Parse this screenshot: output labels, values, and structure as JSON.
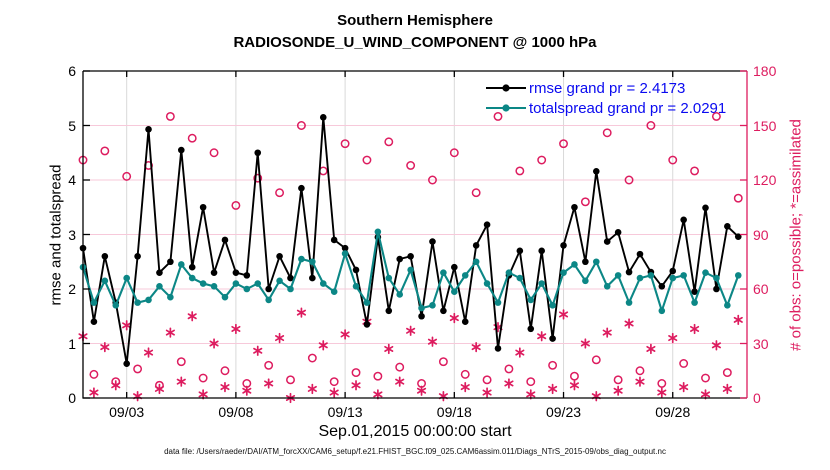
{
  "title": {
    "line1": "Southern Hemisphere",
    "line2": "RADIOSONDE_U_WIND_COMPONENT @ 1000 hPa"
  },
  "axes": {
    "left": {
      "label": "rmse and totalspread",
      "ticks": [
        0,
        1,
        2,
        3,
        4,
        5,
        6
      ],
      "range": [
        0,
        6
      ]
    },
    "right": {
      "label": "# of obs: o=possible; *=assimilated",
      "ticks": [
        0,
        30,
        60,
        90,
        120,
        150,
        180
      ],
      "range": [
        0,
        180
      ]
    },
    "x": {
      "label": "Sep.01,2015 00:00:00 start",
      "tick_labels": [
        "09/03",
        "09/08",
        "09/13",
        "09/18",
        "09/23",
        "09/28"
      ],
      "tick_days": [
        2,
        7,
        12,
        17,
        22,
        27
      ],
      "range_days": [
        0,
        30.4
      ]
    }
  },
  "legend": {
    "items": [
      {
        "label": "rmse grand pr = 2.4173",
        "series": "rmse"
      },
      {
        "label": "totalspread grand pr = 2.0291",
        "series": "totalspread"
      }
    ]
  },
  "footer": "data file: /Users/raeder/DAI/ATM_forcXX/CAM6_setup/f.e21.FHIST_BGC.f09_025.CAM6assim.011/Diags_NTrS_2015-09/obs_diag_output.nc",
  "colors": {
    "rmse": "#000000",
    "totalspread": "#0c8786",
    "obs_pink": "#dd1c5f",
    "legend_text": "#0a0af0",
    "grid_horizontal": "#f7c9da",
    "grid_vertical": "#d9d9d9"
  },
  "chart_data": {
    "type": "line",
    "title": "Southern Hemisphere — RADIOSONDE_U_WIND_COMPONENT @ 1000 hPa",
    "xlabel": "Sep.01,2015 00:00:00 start",
    "ylabel_left": "rmse and totalspread",
    "ylabel_right": "# of obs: o=possible; *=assimilated",
    "ylim_left": [
      0,
      6
    ],
    "ylim_right": [
      0,
      180
    ],
    "grid": true,
    "legend_position": "upper right",
    "grand_pr": {
      "rmse": 2.4173,
      "totalspread": 2.0291
    },
    "x_days": [
      0,
      0.5,
      1,
      1.5,
      2,
      2.5,
      3,
      3.5,
      4,
      4.5,
      5,
      5.5,
      6,
      6.5,
      7,
      7.5,
      8,
      8.5,
      9,
      9.5,
      10,
      10.5,
      11,
      11.5,
      12,
      12.5,
      13,
      13.5,
      14,
      14.5,
      15,
      15.5,
      16,
      16.5,
      17,
      17.5,
      18,
      18.5,
      19,
      19.5,
      20,
      20.5,
      21,
      21.5,
      22,
      22.5,
      23,
      23.5,
      24,
      24.5,
      25,
      25.5,
      26,
      26.5,
      27,
      27.5,
      28,
      28.5,
      29,
      29.5,
      30
    ],
    "series": [
      {
        "name": "rmse",
        "axis": "left",
        "marker": "dot",
        "values": [
          2.75,
          1.4,
          2.6,
          1.75,
          0.63,
          2.6,
          4.93,
          2.3,
          2.5,
          4.55,
          2.4,
          3.5,
          2.3,
          2.9,
          2.3,
          2.25,
          4.5,
          2.0,
          2.6,
          2.2,
          3.85,
          2.2,
          5.15,
          2.9,
          2.75,
          2.35,
          1.35,
          2.95,
          1.6,
          2.55,
          2.6,
          1.5,
          2.87,
          1.6,
          2.4,
          1.4,
          2.8,
          3.18,
          0.91,
          2.25,
          2.7,
          1.27,
          2.7,
          1.09,
          2.8,
          3.5,
          2.5,
          4.16,
          2.87,
          3.04,
          2.31,
          2.64,
          2.31,
          2.05,
          2.33,
          3.27,
          1.95,
          3.49,
          2.0,
          3.15,
          2.96
        ]
      },
      {
        "name": "totalspread",
        "axis": "left",
        "marker": "dot",
        "values": [
          2.4,
          1.75,
          2.15,
          1.7,
          2.2,
          1.75,
          1.8,
          2.05,
          1.85,
          2.45,
          2.2,
          2.1,
          2.05,
          1.85,
          2.1,
          2.0,
          2.1,
          1.8,
          2.15,
          2.0,
          2.55,
          2.5,
          2.1,
          1.95,
          2.65,
          2.05,
          1.75,
          3.05,
          2.2,
          1.9,
          2.35,
          1.65,
          1.7,
          2.3,
          1.95,
          2.25,
          2.5,
          2.1,
          1.75,
          2.3,
          2.2,
          1.8,
          2.1,
          1.7,
          2.3,
          2.45,
          2.15,
          2.5,
          2.05,
          2.25,
          1.75,
          2.2,
          2.25,
          1.6,
          2.2,
          2.25,
          1.75,
          2.3,
          2.2,
          1.7,
          2.25
        ]
      },
      {
        "name": "possible_obs",
        "axis": "right",
        "marker": "circle",
        "values": [
          131,
          13,
          136,
          9,
          122,
          16,
          128,
          7,
          155,
          20,
          143,
          11,
          135,
          15,
          106,
          8,
          121,
          18,
          113,
          10,
          150,
          22,
          125,
          9,
          140,
          14,
          131,
          12,
          141,
          17,
          128,
          8,
          120,
          20,
          135,
          13,
          113,
          10,
          155,
          16,
          125,
          9,
          131,
          18,
          140,
          12,
          108,
          21,
          146,
          10,
          120,
          15,
          150,
          8,
          131,
          19,
          125,
          11,
          155,
          14,
          110
        ]
      },
      {
        "name": "assimilated_obs",
        "axis": "right",
        "marker": "asterisk",
        "values": [
          34,
          3,
          28,
          7,
          40,
          1,
          25,
          5,
          36,
          9,
          45,
          2,
          30,
          6,
          38,
          4,
          26,
          8,
          33,
          0,
          47,
          5,
          29,
          3,
          35,
          7,
          42,
          2,
          27,
          9,
          37,
          4,
          31,
          1,
          44,
          6,
          28,
          3,
          39,
          8,
          25,
          2,
          34,
          5,
          46,
          7,
          30,
          1,
          36,
          4,
          41,
          9,
          27,
          3,
          33,
          6,
          38,
          2,
          29,
          5,
          43
        ]
      }
    ]
  }
}
